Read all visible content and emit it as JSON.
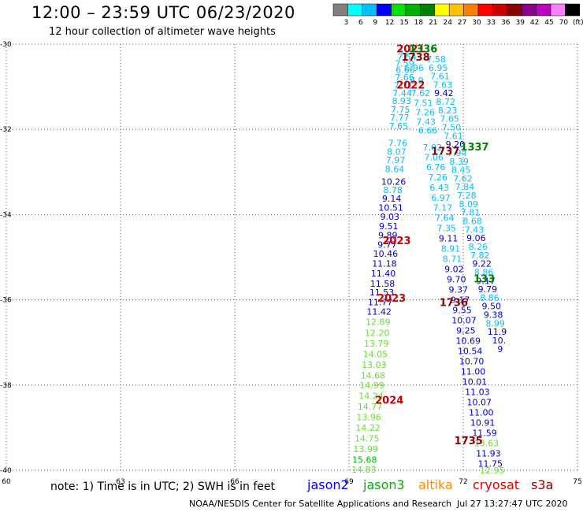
{
  "chart_data": {
    "type": "scatter",
    "title": "12:00 – 23:59 UTC 06/23/2020",
    "subtitle": "12 hour collection of altimeter wave heights",
    "xlim": [
      60,
      75
    ],
    "ylim": [
      -40,
      -30
    ],
    "x_ticks": [
      "60",
      "63",
      "66",
      "69",
      "72",
      "75"
    ],
    "y_ticks": [
      "-30",
      "-32",
      "-34",
      "-36",
      "-38",
      "-40"
    ],
    "grid": true,
    "color_scale": {
      "labels": [
        "3",
        "6",
        "9",
        "12",
        "15",
        "18",
        "21",
        "24",
        "27",
        "30",
        "33",
        "36",
        "39",
        "42",
        "45",
        "70",
        "(ft)"
      ],
      "colors": [
        "#7f7f7f",
        "#00ffff",
        "#00bfff",
        "#0000ff",
        "#00e400",
        "#00b000",
        "#008000",
        "#ffff00",
        "#ffc000",
        "#ff7f00",
        "#ff0000",
        "#c80000",
        "#8b0000",
        "#8b008b",
        "#c000c0",
        "#ff7fff",
        "#000000"
      ]
    },
    "legend": [
      {
        "name": "jason2",
        "color": "#0000ff"
      },
      {
        "name": "jason3",
        "color": "#00b000"
      },
      {
        "name": "altika",
        "color": "#ff8c00"
      },
      {
        "name": "cryosat",
        "color": "#e00000"
      },
      {
        "name": "s3a",
        "color": "#8b0000"
      }
    ],
    "series": [
      {
        "track": "A",
        "points": [
          {
            "x": 70.55,
            "y": -30.1,
            "v": "7.37",
            "c": "#00bfff"
          },
          {
            "x": 70.52,
            "y": -30.3,
            "v": "7.54",
            "c": "#00bfff"
          },
          {
            "x": 70.46,
            "y": -30.45,
            "v": "7.59",
            "c": "#00bfff"
          },
          {
            "x": 70.48,
            "y": -30.6,
            "v": "6.66",
            "c": "#00bfff"
          },
          {
            "x": 70.46,
            "y": -30.78,
            "v": "7.66",
            "c": "#00bfff"
          },
          {
            "x": 70.43,
            "y": -30.97,
            "v": "7.71",
            "c": "#00bfff"
          },
          {
            "x": 70.4,
            "y": -31.15,
            "v": "7.44",
            "c": "#00bfff"
          },
          {
            "x": 70.38,
            "y": -31.33,
            "v": "8.93",
            "c": "#00bfff"
          },
          {
            "x": 70.35,
            "y": -31.53,
            "v": "7.75",
            "c": "#00bfff"
          },
          {
            "x": 70.33,
            "y": -31.72,
            "v": "7.77",
            "c": "#00bfff"
          },
          {
            "x": 70.3,
            "y": -31.92,
            "v": "7.65",
            "c": "#00bfff"
          },
          {
            "x": 70.28,
            "y": -32.32,
            "v": "7.76",
            "c": "#00bfff"
          },
          {
            "x": 70.25,
            "y": -32.52,
            "v": "8.07",
            "c": "#00bfff"
          },
          {
            "x": 70.22,
            "y": -32.72,
            "v": "7.97",
            "c": "#00bfff"
          },
          {
            "x": 70.2,
            "y": -32.93,
            "v": "8.64",
            "c": "#00bfff"
          },
          {
            "x": 70.17,
            "y": -33.23,
            "v": "10.26",
            "c": "#0000cd"
          },
          {
            "x": 70.15,
            "y": -33.42,
            "v": "8.78",
            "c": "#00bfff"
          },
          {
            "x": 70.12,
            "y": -33.62,
            "v": "9.14",
            "c": "#0000cd"
          },
          {
            "x": 70.1,
            "y": -33.84,
            "v": "10.51",
            "c": "#0000cd"
          },
          {
            "x": 70.07,
            "y": -34.05,
            "v": "9.03",
            "c": "#0000cd"
          },
          {
            "x": 70.04,
            "y": -34.27,
            "v": "9.51",
            "c": "#0000cd"
          },
          {
            "x": 70.02,
            "y": -34.48,
            "v": "9.89",
            "c": "#0000cd"
          },
          {
            "x": 70.0,
            "y": -34.7,
            "v": "9.77",
            "c": "#0000cd"
          },
          {
            "x": 69.96,
            "y": -34.92,
            "v": "10.46",
            "c": "#0000cd"
          },
          {
            "x": 69.93,
            "y": -35.15,
            "v": "11.18",
            "c": "#0000cd"
          },
          {
            "x": 69.9,
            "y": -35.38,
            "v": "11.40",
            "c": "#0000cd"
          },
          {
            "x": 69.88,
            "y": -35.62,
            "v": "11.58",
            "c": "#0000cd"
          },
          {
            "x": 69.86,
            "y": -35.82,
            "v": "11.53",
            "c": "#0000cd"
          },
          {
            "x": 69.82,
            "y": -36.05,
            "v": "11.77",
            "c": "#0000cd"
          },
          {
            "x": 69.79,
            "y": -36.28,
            "v": "11.42",
            "c": "#0000cd"
          },
          {
            "x": 69.76,
            "y": -36.52,
            "v": "12.89",
            "c": "#66dd33"
          },
          {
            "x": 69.74,
            "y": -36.77,
            "v": "12.20",
            "c": "#66dd33"
          },
          {
            "x": 69.72,
            "y": -37.02,
            "v": "13.79",
            "c": "#66dd33"
          },
          {
            "x": 69.69,
            "y": -37.27,
            "v": "14.05",
            "c": "#66dd33"
          },
          {
            "x": 69.66,
            "y": -37.52,
            "v": "13.03",
            "c": "#66dd33"
          },
          {
            "x": 69.63,
            "y": -37.77,
            "v": "14.68",
            "c": "#66dd33"
          },
          {
            "x": 69.6,
            "y": -38.0,
            "v": "14.99",
            "c": "#66dd33"
          },
          {
            "x": 69.58,
            "y": -38.25,
            "v": "14.24",
            "c": "#66dd33"
          },
          {
            "x": 69.55,
            "y": -38.5,
            "v": "14.77",
            "c": "#66dd33"
          },
          {
            "x": 69.52,
            "y": -38.75,
            "v": "13.96",
            "c": "#66dd33"
          },
          {
            "x": 69.5,
            "y": -39.0,
            "v": "14.22",
            "c": "#66dd33"
          },
          {
            "x": 69.47,
            "y": -39.25,
            "v": "14.75",
            "c": "#66dd33"
          },
          {
            "x": 69.44,
            "y": -39.5,
            "v": "13.99",
            "c": "#66dd33"
          },
          {
            "x": 69.41,
            "y": -39.75,
            "v": "15.68",
            "c": "#00b000"
          },
          {
            "x": 69.39,
            "y": -39.98,
            "v": "14.83",
            "c": "#66dd33"
          }
        ]
      },
      {
        "track": "B",
        "points": [
          {
            "x": 70.71,
            "y": -30.55,
            "v": "6.96",
            "c": "#00bfff"
          },
          {
            "x": 70.78,
            "y": -30.85,
            "v": "6.9",
            "c": "#00bfff"
          },
          {
            "x": 70.88,
            "y": -31.15,
            "v": "7.62",
            "c": "#00bfff"
          },
          {
            "x": 70.95,
            "y": -31.38,
            "v": "7.51",
            "c": "#00bfff"
          },
          {
            "x": 71.0,
            "y": -31.6,
            "v": "7.26",
            "c": "#00bfff"
          },
          {
            "x": 71.02,
            "y": -31.82,
            "v": "7.43",
            "c": "#00bfff"
          },
          {
            "x": 71.07,
            "y": -32.02,
            "v": "6.66",
            "c": "#00bfff"
          },
          {
            "x": 71.19,
            "y": -32.42,
            "v": "7.02",
            "c": "#00bfff"
          },
          {
            "x": 71.23,
            "y": -32.65,
            "v": "7.06",
            "c": "#00bfff"
          },
          {
            "x": 71.28,
            "y": -32.88,
            "v": "6.76",
            "c": "#00bfff"
          },
          {
            "x": 71.33,
            "y": -33.12,
            "v": "7.26",
            "c": "#00bfff"
          },
          {
            "x": 71.37,
            "y": -33.36,
            "v": "6.43",
            "c": "#00bfff"
          },
          {
            "x": 71.41,
            "y": -33.6,
            "v": "6.97",
            "c": "#00bfff"
          },
          {
            "x": 71.46,
            "y": -33.84,
            "v": "7.17",
            "c": "#00bfff"
          },
          {
            "x": 71.51,
            "y": -34.08,
            "v": "7.64",
            "c": "#00bfff"
          },
          {
            "x": 71.56,
            "y": -34.32,
            "v": "7.35",
            "c": "#00bfff"
          },
          {
            "x": 71.61,
            "y": -34.56,
            "v": "9.11",
            "c": "#0000cd"
          },
          {
            "x": 71.67,
            "y": -34.8,
            "v": "8.91",
            "c": "#00bfff"
          },
          {
            "x": 71.71,
            "y": -35.04,
            "v": "8.71",
            "c": "#00bfff"
          },
          {
            "x": 71.76,
            "y": -35.28,
            "v": "9.02",
            "c": "#0000cd"
          },
          {
            "x": 71.82,
            "y": -35.52,
            "v": "9.70",
            "c": "#0000cd"
          },
          {
            "x": 71.87,
            "y": -35.76,
            "v": "9.37",
            "c": "#0000cd"
          },
          {
            "x": 71.92,
            "y": -36.0,
            "v": "9.17",
            "c": "#0000cd"
          },
          {
            "x": 71.97,
            "y": -36.24,
            "v": "9.55",
            "c": "#0000cd"
          },
          {
            "x": 72.02,
            "y": -36.48,
            "v": "10.07",
            "c": "#0000cd"
          },
          {
            "x": 72.07,
            "y": -36.72,
            "v": "9.25",
            "c": "#0000cd"
          },
          {
            "x": 72.13,
            "y": -36.96,
            "v": "10.69",
            "c": "#0000cd"
          },
          {
            "x": 72.18,
            "y": -37.2,
            "v": "10.54",
            "c": "#0000cd"
          },
          {
            "x": 72.22,
            "y": -37.44,
            "v": "10.70",
            "c": "#0000cd"
          },
          {
            "x": 72.26,
            "y": -37.68,
            "v": "11.00",
            "c": "#0000cd"
          },
          {
            "x": 72.3,
            "y": -37.92,
            "v": "10.01",
            "c": "#0000cd"
          },
          {
            "x": 72.37,
            "y": -38.16,
            "v": "11.03",
            "c": "#0000cd"
          },
          {
            "x": 72.42,
            "y": -38.4,
            "v": "10.07",
            "c": "#0000cd"
          },
          {
            "x": 72.47,
            "y": -38.64,
            "v": "11.00",
            "c": "#0000cd"
          },
          {
            "x": 72.51,
            "y": -38.88,
            "v": "10.91",
            "c": "#0000cd"
          },
          {
            "x": 72.56,
            "y": -39.12,
            "v": "11.59",
            "c": "#0000cd"
          },
          {
            "x": 72.61,
            "y": -39.36,
            "v": "13.63",
            "c": "#66dd33"
          },
          {
            "x": 72.66,
            "y": -39.6,
            "v": "11.93",
            "c": "#0000cd"
          },
          {
            "x": 72.71,
            "y": -39.84,
            "v": "11.75",
            "c": "#0000cd"
          },
          {
            "x": 72.76,
            "y": -40.0,
            "v": "12.95",
            "c": "#66dd33"
          }
        ]
      },
      {
        "track": "C",
        "points": [
          {
            "x": 71.29,
            "y": -30.35,
            "v": "7.58",
            "c": "#00bfff"
          },
          {
            "x": 71.34,
            "y": -30.55,
            "v": "6.95",
            "c": "#00bfff"
          },
          {
            "x": 71.39,
            "y": -30.75,
            "v": "7.61",
            "c": "#00bfff"
          },
          {
            "x": 71.46,
            "y": -30.95,
            "v": "7.63",
            "c": "#00bfff"
          },
          {
            "x": 71.49,
            "y": -31.15,
            "v": "9.42",
            "c": "#0000cd"
          },
          {
            "x": 71.54,
            "y": -31.35,
            "v": "8.72",
            "c": "#00bfff"
          },
          {
            "x": 71.59,
            "y": -31.55,
            "v": "8.23",
            "c": "#00bfff"
          },
          {
            "x": 71.64,
            "y": -31.75,
            "v": "7.65",
            "c": "#00bfff"
          },
          {
            "x": 71.69,
            "y": -31.95,
            "v": "7.50",
            "c": "#00bfff"
          },
          {
            "x": 71.74,
            "y": -32.15,
            "v": "7.61",
            "c": "#00bfff"
          },
          {
            "x": 71.79,
            "y": -32.35,
            "v": "9.20",
            "c": "#0000cd"
          },
          {
            "x": 71.84,
            "y": -32.55,
            "v": "7.94",
            "c": "#00bfff"
          },
          {
            "x": 71.89,
            "y": -32.75,
            "v": "8.39",
            "c": "#00bfff"
          },
          {
            "x": 71.94,
            "y": -32.95,
            "v": "8.45",
            "c": "#00bfff"
          },
          {
            "x": 71.99,
            "y": -33.15,
            "v": "7.62",
            "c": "#00bfff"
          },
          {
            "x": 72.04,
            "y": -33.35,
            "v": "7.84",
            "c": "#00bfff"
          },
          {
            "x": 72.09,
            "y": -33.55,
            "v": "7.28",
            "c": "#00bfff"
          },
          {
            "x": 72.14,
            "y": -33.75,
            "v": "8.09",
            "c": "#00bfff"
          },
          {
            "x": 72.19,
            "y": -33.95,
            "v": "7.81",
            "c": "#00bfff"
          },
          {
            "x": 72.24,
            "y": -34.15,
            "v": "8.68",
            "c": "#00bfff"
          },
          {
            "x": 72.29,
            "y": -34.35,
            "v": "7.43",
            "c": "#00bfff"
          },
          {
            "x": 72.34,
            "y": -34.55,
            "v": "9.06",
            "c": "#0000cd"
          },
          {
            "x": 72.39,
            "y": -34.75,
            "v": "8.26",
            "c": "#00bfff"
          },
          {
            "x": 72.44,
            "y": -34.95,
            "v": "7.82",
            "c": "#00bfff"
          },
          {
            "x": 72.49,
            "y": -35.15,
            "v": "9.22",
            "c": "#0000cd"
          },
          {
            "x": 72.54,
            "y": -35.35,
            "v": "8.86",
            "c": "#00bfff"
          },
          {
            "x": 72.59,
            "y": -35.55,
            "v": "9.17",
            "c": "#0000cd"
          },
          {
            "x": 72.64,
            "y": -35.75,
            "v": "9.79",
            "c": "#0000cd"
          },
          {
            "x": 72.69,
            "y": -35.95,
            "v": "8.86",
            "c": "#00bfff"
          },
          {
            "x": 72.74,
            "y": -36.15,
            "v": "9.50",
            "c": "#0000cd"
          },
          {
            "x": 72.79,
            "y": -36.35,
            "v": "9.38",
            "c": "#0000cd"
          },
          {
            "x": 72.84,
            "y": -36.55,
            "v": "8.99",
            "c": "#00bfff"
          },
          {
            "x": 72.89,
            "y": -36.75,
            "v": "11.9",
            "c": "#0000cd"
          },
          {
            "x": 72.94,
            "y": -36.95,
            "v": "10.",
            "c": "#0000cd"
          },
          {
            "x": 72.97,
            "y": -37.15,
            "v": "9",
            "c": "#0000cd"
          }
        ]
      }
    ],
    "time_labels": [
      {
        "x": 70.62,
        "y": -30.1,
        "t": "2021",
        "c": "#cc0000"
      },
      {
        "x": 70.95,
        "y": -30.1,
        "t": "1336",
        "c": "#008000"
      },
      {
        "x": 70.75,
        "y": -30.3,
        "t": "1738",
        "c": "#8b0000"
      },
      {
        "x": 70.62,
        "y": -30.95,
        "t": "2022",
        "c": "#cc0000"
      },
      {
        "x": 70.25,
        "y": -34.6,
        "t": "2023",
        "c": "#cc0000"
      },
      {
        "x": 70.12,
        "y": -35.95,
        "t": "2023",
        "c": "#cc0000"
      },
      {
        "x": 70.06,
        "y": -38.35,
        "t": "2024",
        "c": "#cc0000"
      },
      {
        "x": 71.53,
        "y": -32.5,
        "t": "1737",
        "c": "#8b0000"
      },
      {
        "x": 72.3,
        "y": -32.4,
        "t": "1337",
        "c": "#008000"
      },
      {
        "x": 72.55,
        "y": -35.5,
        "t": "133",
        "c": "#008000"
      },
      {
        "x": 71.75,
        "y": -36.05,
        "t": "1736",
        "c": "#8b0000"
      },
      {
        "x": 72.14,
        "y": -39.3,
        "t": "1735",
        "c": "#8b0000"
      }
    ],
    "note": "note: 1) Time is in UTC; 2) SWH is in feet",
    "credit": "NOAA/NESDIS Center for Satellite Applications and Research",
    "timestamp": "Jul 27 13:27:47 UTC 2020"
  }
}
